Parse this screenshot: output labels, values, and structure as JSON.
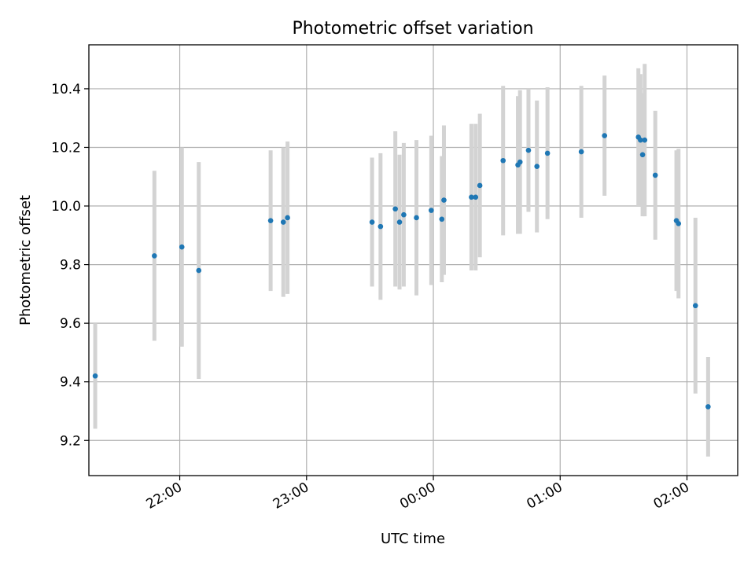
{
  "chart_data": {
    "type": "scatter",
    "title": "Photometric offset variation",
    "xlabel": "UTC time",
    "ylabel": "Photometric offset",
    "x_axis_type": "time",
    "xlim": [
      "21:17",
      "02:24"
    ],
    "ylim": [
      9.08,
      10.55
    ],
    "grid": true,
    "yticks": [
      9.2,
      9.4,
      9.6,
      9.8,
      10.0,
      10.2,
      10.4
    ],
    "xticks": [
      "22:00",
      "23:00",
      "00:00",
      "01:00",
      "02:00"
    ],
    "marker_color": "#1f77b4",
    "errorbar_color": "#d3d3d3",
    "points": [
      {
        "x": "21:20",
        "y": 9.42,
        "yerr": 0.18
      },
      {
        "x": "21:48",
        "y": 9.83,
        "yerr": 0.29
      },
      {
        "x": "22:01",
        "y": 9.86,
        "yerr": 0.34
      },
      {
        "x": "22:09",
        "y": 9.78,
        "yerr": 0.37
      },
      {
        "x": "22:43",
        "y": 9.95,
        "yerr": 0.24
      },
      {
        "x": "22:49",
        "y": 9.945,
        "yerr": 0.255
      },
      {
        "x": "22:51",
        "y": 9.96,
        "yerr": 0.26
      },
      {
        "x": "23:31",
        "y": 9.945,
        "yerr": 0.22
      },
      {
        "x": "23:35",
        "y": 9.93,
        "yerr": 0.25
      },
      {
        "x": "23:42",
        "y": 9.99,
        "yerr": 0.265
      },
      {
        "x": "23:44",
        "y": 9.945,
        "yerr": 0.23
      },
      {
        "x": "23:46",
        "y": 9.97,
        "yerr": 0.245
      },
      {
        "x": "23:52",
        "y": 9.96,
        "yerr": 0.265
      },
      {
        "x": "23:59",
        "y": 9.985,
        "yerr": 0.255
      },
      {
        "x": "00:04",
        "y": 9.955,
        "yerr": 0.215
      },
      {
        "x": "00:05",
        "y": 10.02,
        "yerr": 0.255
      },
      {
        "x": "00:18",
        "y": 10.03,
        "yerr": 0.25
      },
      {
        "x": "00:20",
        "y": 10.03,
        "yerr": 0.25
      },
      {
        "x": "00:22",
        "y": 10.07,
        "yerr": 0.245
      },
      {
        "x": "00:33",
        "y": 10.155,
        "yerr": 0.255
      },
      {
        "x": "00:40",
        "y": 10.14,
        "yerr": 0.235
      },
      {
        "x": "00:41",
        "y": 10.15,
        "yerr": 0.245
      },
      {
        "x": "00:45",
        "y": 10.19,
        "yerr": 0.21
      },
      {
        "x": "00:49",
        "y": 10.135,
        "yerr": 0.225
      },
      {
        "x": "00:54",
        "y": 10.18,
        "yerr": 0.225
      },
      {
        "x": "01:10",
        "y": 10.185,
        "yerr": 0.225
      },
      {
        "x": "01:21",
        "y": 10.24,
        "yerr": 0.205
      },
      {
        "x": "01:37",
        "y": 10.235,
        "yerr": 0.235
      },
      {
        "x": "01:38",
        "y": 10.225,
        "yerr": 0.225
      },
      {
        "x": "01:39",
        "y": 10.175,
        "yerr": 0.21
      },
      {
        "x": "01:40",
        "y": 10.225,
        "yerr": 0.26
      },
      {
        "x": "01:45",
        "y": 10.105,
        "yerr": 0.22
      },
      {
        "x": "01:55",
        "y": 9.95,
        "yerr": 0.24
      },
      {
        "x": "01:56",
        "y": 9.94,
        "yerr": 0.255
      },
      {
        "x": "02:04",
        "y": 9.66,
        "yerr": 0.3
      },
      {
        "x": "02:10",
        "y": 9.315,
        "yerr": 0.17
      }
    ]
  }
}
